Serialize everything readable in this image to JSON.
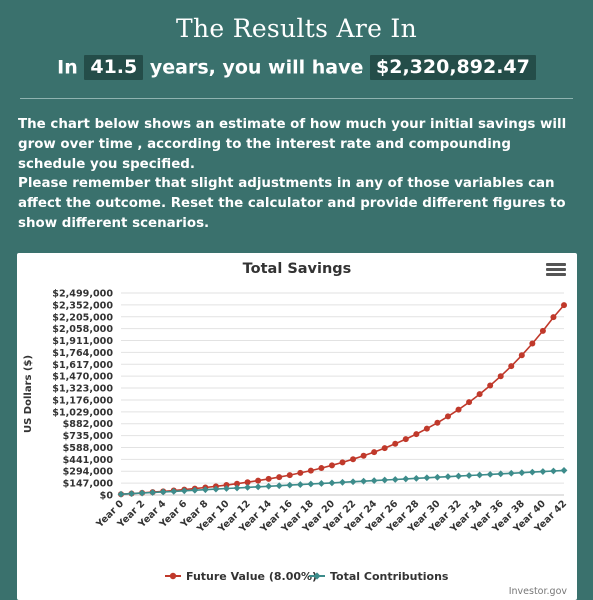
{
  "header": {
    "title": "The Results Are In",
    "line_prefix": "In",
    "years": "41.5",
    "line_middle": "years, you will have",
    "amount": "$2,320,892.47"
  },
  "paragraphs": {
    "p1": "The chart below shows an estimate of how much your initial savings will grow over time , according to the interest rate and compounding schedule you specified.",
    "p2": "Please remember that slight adjustments in any of those variables can affect the outcome. Reset the calculator and provide different figures to show different scenarios."
  },
  "chart": {
    "menu_icon": "hamburger-menu-icon",
    "credit": "Investor.gov"
  },
  "chart_data": {
    "type": "line",
    "title": "Total Savings",
    "ylabel": "US Dollars ($)",
    "xlabel": "",
    "ylim": [
      0,
      2499000
    ],
    "yticks": [
      0,
      147000,
      294000,
      441000,
      588000,
      735000,
      882000,
      1029000,
      1176000,
      1323000,
      1470000,
      1617000,
      1764000,
      1911000,
      2058000,
      2205000,
      2352000,
      2499000
    ],
    "ytick_labels": [
      "$0",
      "$147,000",
      "$294,000",
      "$441,000",
      "$588,000",
      "$735,000",
      "$882,000",
      "$1,029,000",
      "$1,176,000",
      "$1,323,000",
      "$1,470,000",
      "$1,617,000",
      "$1,764,000",
      "$1,911,000",
      "$2,058,000",
      "$2,205,000",
      "$2,352,000",
      "$2,499,000"
    ],
    "categories": [
      "Year 0",
      "Year 1",
      "Year 2",
      "Year 3",
      "Year 4",
      "Year 5",
      "Year 6",
      "Year 7",
      "Year 8",
      "Year 9",
      "Year 10",
      "Year 11",
      "Year 12",
      "Year 13",
      "Year 14",
      "Year 15",
      "Year 16",
      "Year 17",
      "Year 18",
      "Year 19",
      "Year 20",
      "Year 21",
      "Year 22",
      "Year 23",
      "Year 24",
      "Year 25",
      "Year 26",
      "Year 27",
      "Year 28",
      "Year 29",
      "Year 30",
      "Year 31",
      "Year 32",
      "Year 33",
      "Year 34",
      "Year 35",
      "Year 36",
      "Year 37",
      "Year 38",
      "Year 39",
      "Year 40",
      "Year 41",
      "Year 42"
    ],
    "xtick_labels_shown": [
      "Year 0",
      "Year 2",
      "Year 4",
      "Year 6",
      "Year 8",
      "Year 10",
      "Year 12",
      "Year 14",
      "Year 16",
      "Year 18",
      "Year 20",
      "Year 22",
      "Year 24",
      "Year 26",
      "Year 28",
      "Year 30",
      "Year 32",
      "Year 34",
      "Year 36",
      "Year 38",
      "Year 40",
      "Year 42"
    ],
    "grid": true,
    "legend_position": "bottom-center",
    "series": [
      {
        "name": "Future Value (8.00%)",
        "color": "#c0392b",
        "values": [
          10000,
          17800,
          26224,
          35322,
          45148,
          55760,
          67221,
          79599,
          92967,
          107404,
          122997,
          139836,
          158023,
          177665,
          198878,
          221788,
          246531,
          273254,
          302114,
          333283,
          366946,
          403302,
          442566,
          484971,
          530769,
          580230,
          633648,
          691340,
          753647,
          820939,
          893614,
          972103,
          1056871,
          1148421,
          1247295,
          1354078,
          1469404,
          1593956,
          1728472,
          1873750,
          2030650,
          2200102,
          2349000
        ]
      },
      {
        "name": "Total Contributions",
        "color": "#3d8c8b",
        "values": [
          10000,
          17000,
          24000,
          31000,
          38000,
          45000,
          52000,
          59000,
          66000,
          73000,
          80000,
          87000,
          94000,
          101000,
          108000,
          115000,
          122000,
          129000,
          136000,
          143000,
          150000,
          157000,
          164000,
          171000,
          178000,
          185000,
          192000,
          199000,
          206000,
          213000,
          220000,
          227000,
          234000,
          241000,
          248000,
          255000,
          262000,
          269000,
          276000,
          283000,
          290000,
          297000,
          304000
        ]
      }
    ]
  }
}
